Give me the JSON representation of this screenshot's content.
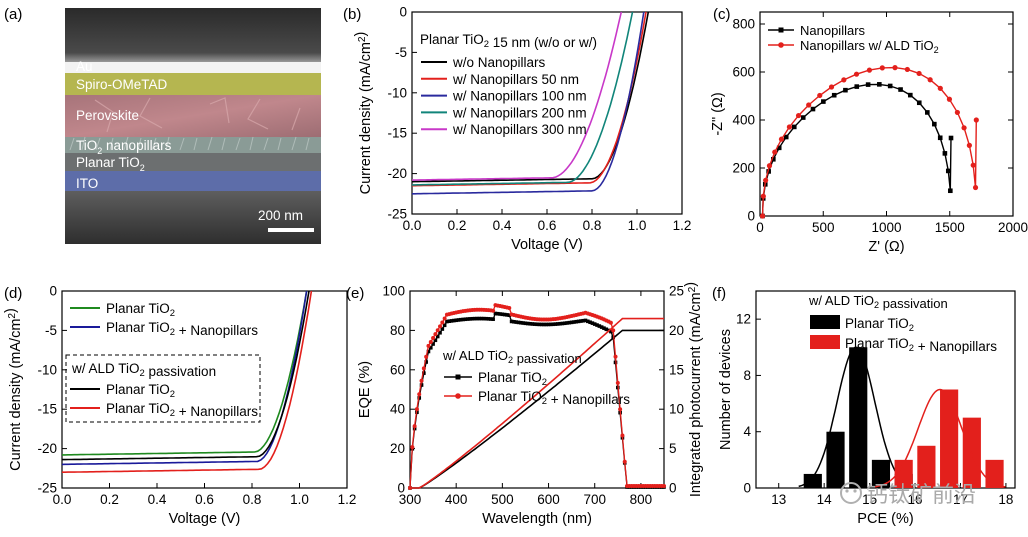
{
  "figure": {
    "panels": {
      "a": {
        "tag": "(a)",
        "layers": [
          "Au",
          "Spiro-OMeTAD",
          "Perovskite",
          "TiO",
          "nanopillars",
          "Planar TiO",
          "ITO"
        ],
        "subscript": "2",
        "scalebar": "200 nm"
      },
      "watermark": "钙钛矿前沿"
    },
    "colors": {
      "black": "#000000",
      "red": "#e3201c",
      "blue": "#2a2a9e",
      "darkblue": "#1a1a9a",
      "teal": "#11857a",
      "magenta": "#c838c8",
      "green": "#1f8a1f"
    }
  },
  "chart_data": [
    {
      "id": "b",
      "tag": "(b)",
      "type": "line",
      "title": "Planar TiO₂ 15 nm (w/o or w/)",
      "xlabel": "Voltage (V)",
      "ylabel": "Current density (mA/cm²)",
      "xlim": [
        0.0,
        1.2
      ],
      "ylim": [
        -25,
        0
      ],
      "xticks": [
        "0.0",
        "0.2",
        "0.4",
        "0.6",
        "0.8",
        "1.0",
        "1.2"
      ],
      "yticks": [
        "0",
        "-5",
        "-10",
        "-15",
        "-20",
        "-25"
      ],
      "series": [
        {
          "name": "w/o Nanopillars",
          "color": "#000000",
          "jsc": -21.0,
          "voc": 1.05,
          "vk": 0.8
        },
        {
          "name": "w/ Nanopillars 50 nm",
          "color": "#e3201c",
          "jsc": -21.5,
          "voc": 1.04,
          "vk": 0.79
        },
        {
          "name": "w/ Nanopillars 100 nm",
          "color": "#2a2a9e",
          "jsc": -22.5,
          "voc": 1.03,
          "vk": 0.8
        },
        {
          "name": "w/ Nanopillars 200 nm",
          "color": "#11857a",
          "jsc": -21.4,
          "voc": 0.98,
          "vk": 0.69
        },
        {
          "name": "w/ Nanopillars 300 nm",
          "color": "#c838c8",
          "jsc": -20.8,
          "voc": 0.93,
          "vk": 0.62
        }
      ]
    },
    {
      "id": "c",
      "tag": "(c)",
      "type": "line",
      "xlabel": "Z' (Ω)",
      "ylabel": "-Z\" (Ω)",
      "xlim": [
        0,
        2000
      ],
      "ylim": [
        0,
        850
      ],
      "xticks": [
        "0",
        "500",
        "1000",
        "1500",
        "2000"
      ],
      "yticks": [
        "0",
        "200",
        "400",
        "600",
        "800"
      ],
      "series": [
        {
          "name": "Nanopillars",
          "color": "#000000",
          "r0": 20,
          "r1": 1510,
          "peak_x": 880,
          "peak_y": 550
        },
        {
          "name": "Nanopillars w/ ALD TiO₂",
          "color": "#e3201c",
          "r0": 20,
          "r1": 1710,
          "peak_x": 1000,
          "peak_y": 620
        }
      ]
    },
    {
      "id": "d",
      "tag": "(d)",
      "type": "line",
      "xlabel": "Voltage (V)",
      "ylabel": "Current density (mA/cm²)",
      "xlim": [
        0.0,
        1.2
      ],
      "ylim": [
        -25,
        0
      ],
      "xticks": [
        "0.0",
        "0.2",
        "0.4",
        "0.6",
        "0.8",
        "1.0",
        "1.2"
      ],
      "yticks": [
        "0",
        "-5",
        "-10",
        "-15",
        "-20",
        "-25"
      ],
      "legend_box_title": "w/ ALD TiO₂ passivation",
      "series": [
        {
          "name": "Planar TiO₂",
          "color": "#1f8a1f",
          "jsc": -20.8,
          "voc": 1.03,
          "vk": 0.81
        },
        {
          "name": "Planar TiO₂ + Nanopillars",
          "color": "#1a1a9a",
          "jsc": -22.0,
          "voc": 1.03,
          "vk": 0.82
        },
        {
          "name": "Planar TiO₂",
          "color": "#000000",
          "jsc": -21.4,
          "voc": 1.04,
          "vk": 0.82
        },
        {
          "name": "Planar TiO₂ + Nanopillars",
          "color": "#e3201c",
          "jsc": -23.0,
          "voc": 1.05,
          "vk": 0.83
        }
      ]
    },
    {
      "id": "e",
      "tag": "(e)",
      "type": "line",
      "xlabel": "Wavelength (nm)",
      "ylabel": "EQE (%)",
      "y2label": "Integrated photocurrent (mA/cm²)",
      "xlim": [
        300,
        850
      ],
      "ylim": [
        0,
        100
      ],
      "y2lim": [
        0,
        25
      ],
      "xticks": [
        "300",
        "400",
        "500",
        "600",
        "700",
        "800"
      ],
      "yticks": [
        "0",
        "20",
        "40",
        "60",
        "80",
        "100"
      ],
      "y2ticks": [
        "0",
        "5",
        "10",
        "15",
        "20",
        "25"
      ],
      "legend_title": "w/ ALD TiO₂ passivation",
      "series": [
        {
          "name": "Planar TiO₂",
          "color": "#000000",
          "plateau": 84.5,
          "int_end": 20.0
        },
        {
          "name": "Planar TiO₂ + Nanopillars",
          "color": "#e3201c",
          "plateau": 88.0,
          "int_end": 21.5
        }
      ]
    },
    {
      "id": "f",
      "tag": "(f)",
      "type": "bar",
      "xlabel": "PCE (%)",
      "ylabel": "Number of devices",
      "xlim": [
        12.5,
        18.2
      ],
      "ylim": [
        0,
        14
      ],
      "xticks": [
        "13",
        "14",
        "15",
        "16",
        "17",
        "18"
      ],
      "yticks": [
        "0",
        "4",
        "8",
        "12"
      ],
      "legend_title": "w/ ALD TiO₂ passivation",
      "series": [
        {
          "name": "Planar TiO₂",
          "color": "#000000",
          "bins": [
            13.75,
            14.25,
            14.75,
            15.25,
            15.75
          ],
          "counts": [
            1,
            4,
            10,
            2,
            1
          ],
          "fit_mu": 14.7,
          "fit_sigma": 0.42,
          "fit_peak": 10
        },
        {
          "name": "Planar TiO₂ + Nanopillars",
          "color": "#e3201c",
          "bins": [
            15.75,
            16.25,
            16.75,
            17.25,
            17.75
          ],
          "counts": [
            2,
            3,
            7,
            5,
            2
          ],
          "fit_mu": 16.55,
          "fit_sigma": 0.48,
          "fit_peak": 7
        }
      ]
    }
  ]
}
